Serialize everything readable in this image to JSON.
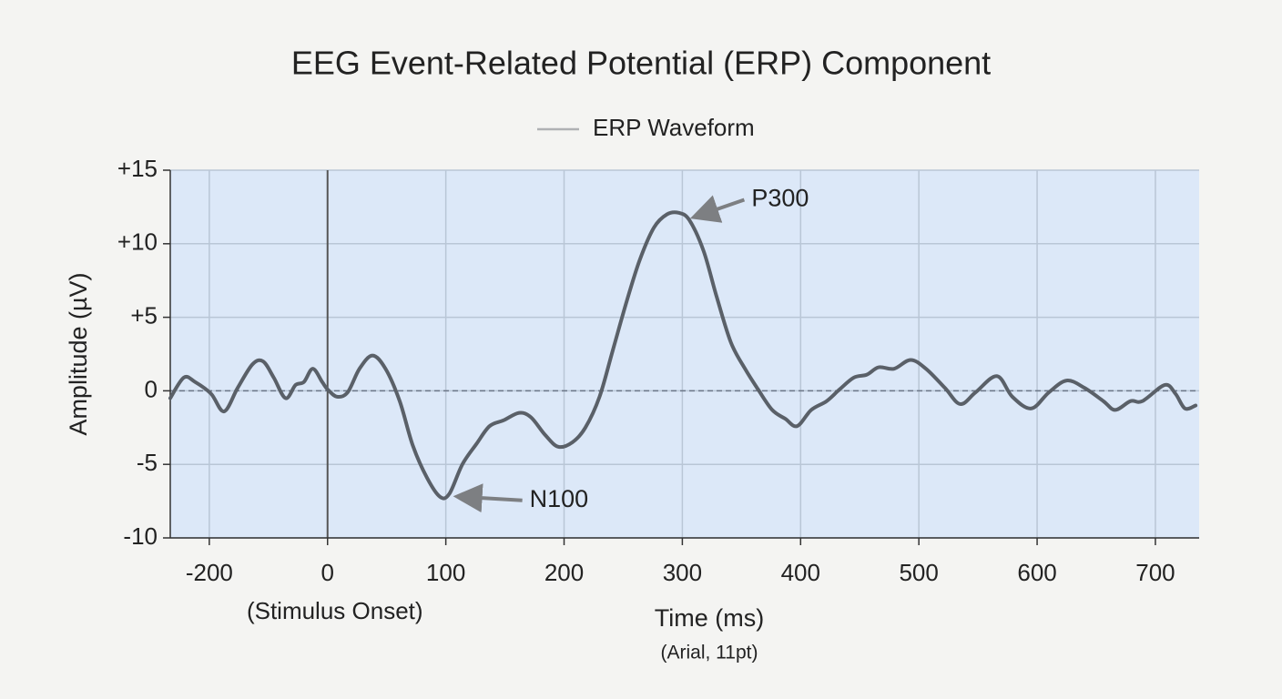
{
  "chart_data": {
    "type": "line",
    "title": "EEG Event-Related Potential (ERP) Component",
    "xlabel": "Time (ms)",
    "xlabel_note": "(Arial, 11pt)",
    "ylabel": "Amplitude (µV)",
    "onset_label": {
      "text": "(Stimulus Onset)",
      "x": 0
    },
    "xlim": [
      -266,
      737
    ],
    "ylim": [
      -10,
      15
    ],
    "xticks": [
      -200,
      0,
      100,
      200,
      300,
      400,
      500,
      600,
      700
    ],
    "yticks": [
      {
        "value": 15,
        "label": "+15"
      },
      {
        "value": 10,
        "label": "+10"
      },
      {
        "value": 5,
        "label": "+5"
      },
      0,
      -5,
      -10
    ],
    "grid": true,
    "legend": "top",
    "annotations": [
      {
        "text": "P300",
        "x": 300,
        "y": 12
      },
      {
        "text": "N100",
        "x": 100,
        "y": -7.2
      }
    ],
    "x": [
      -266,
      -243,
      -224,
      -197,
      -175,
      -152,
      -127,
      -109,
      -91,
      -71,
      -54,
      -40,
      -25,
      -9,
      0,
      8,
      17,
      27,
      38,
      49,
      61,
      72,
      84,
      95,
      103,
      114,
      126,
      137,
      149,
      162,
      172,
      184,
      195,
      207,
      218,
      230,
      241,
      253,
      264,
      276,
      287,
      297,
      306,
      318,
      329,
      341,
      353,
      364,
      376,
      387,
      397,
      409,
      422,
      433,
      445,
      456,
      466,
      479,
      493,
      506,
      522,
      535,
      548,
      566,
      579,
      595,
      610,
      625,
      640,
      656,
      666,
      679,
      689,
      708,
      717,
      725,
      734
    ],
    "series": [
      {
        "name": "ERP Waveform",
        "color": "#5a6068",
        "values": [
          -0.5,
          0.9,
          0.6,
          -0.2,
          -1.4,
          0.2,
          1.8,
          2.0,
          0.9,
          -0.5,
          0.4,
          0.6,
          1.5,
          0.6,
          0.1,
          -0.4,
          -0.1,
          1.5,
          2.4,
          1.5,
          -0.7,
          -3.7,
          -5.9,
          -7.2,
          -7.0,
          -5.0,
          -3.6,
          -2.4,
          -2.0,
          -1.5,
          -1.8,
          -3.0,
          -3.8,
          -3.5,
          -2.5,
          -0.4,
          2.7,
          6.1,
          8.9,
          11.1,
          12.0,
          12.1,
          11.6,
          9.5,
          6.4,
          3.3,
          1.5,
          0.1,
          -1.3,
          -1.9,
          -2.4,
          -1.3,
          -0.7,
          0.1,
          0.9,
          1.1,
          1.6,
          1.5,
          2.1,
          1.5,
          0.2,
          -0.9,
          -0.1,
          1.0,
          -0.4,
          -1.2,
          -0.1,
          0.7,
          0.2,
          -0.7,
          -1.3,
          -0.7,
          -0.7,
          0.4,
          -0.2,
          -1.2,
          -1.0
        ]
      }
    ]
  }
}
